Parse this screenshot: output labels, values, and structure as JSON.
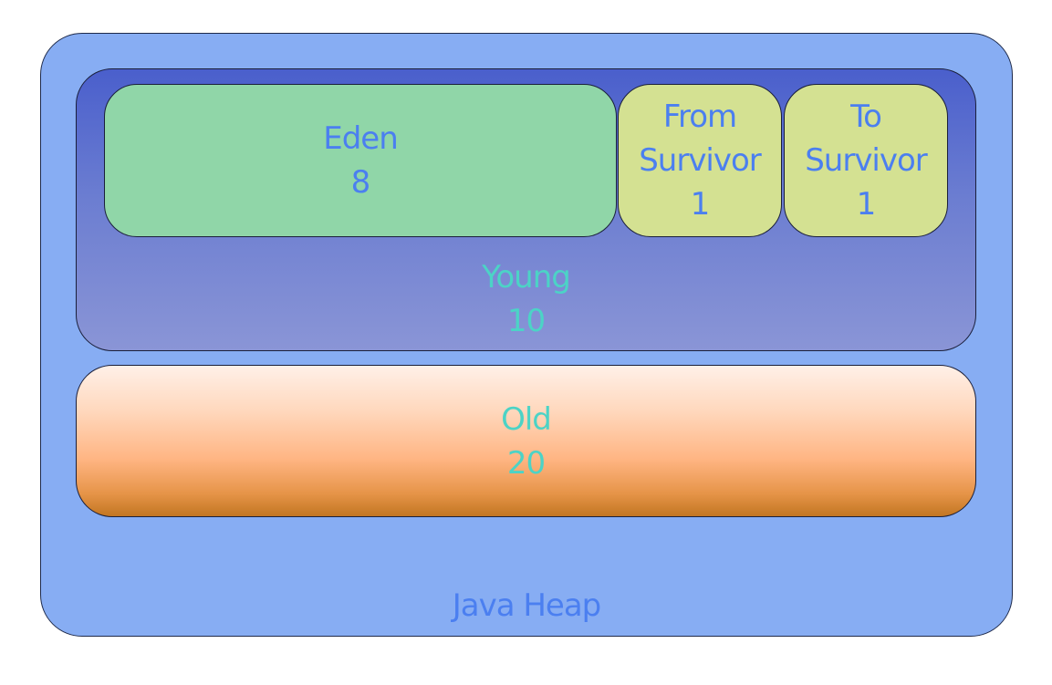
{
  "heap": {
    "label": "Java Heap"
  },
  "young": {
    "label": "Young",
    "size": "10"
  },
  "eden": {
    "label": "Eden",
    "size": "8"
  },
  "from_survivor": {
    "label_line1": "From",
    "label_line2": "Survivor",
    "size": "1"
  },
  "to_survivor": {
    "label_line1": "To",
    "label_line2": "Survivor",
    "size": "1"
  },
  "old": {
    "label": "Old",
    "size": "20"
  },
  "colors": {
    "heap_fill": "#87adf3",
    "young_fill_top": "#4a5fcc",
    "young_fill_bottom": "#8a95d6",
    "eden_fill": "#90d6a8",
    "survivor_fill": "#d4e192",
    "old_fill_top": "#fff0e8",
    "old_fill_bottom": "#c27622",
    "label_blue": "#4b7ff0",
    "label_teal": "#4cd3c6"
  }
}
